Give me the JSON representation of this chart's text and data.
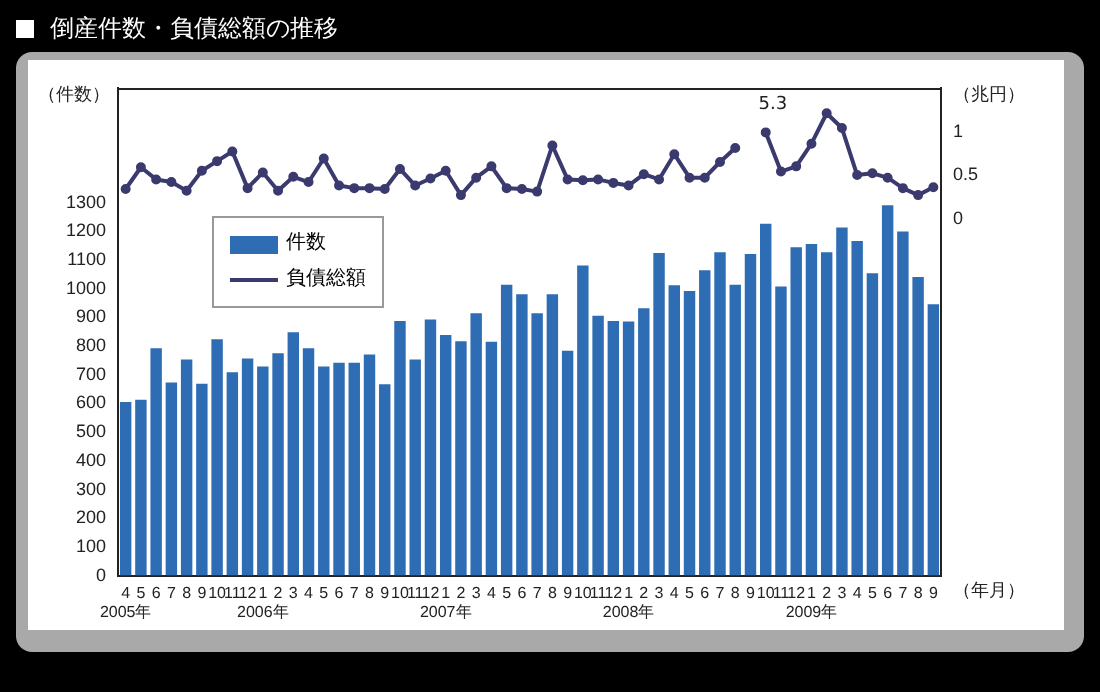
{
  "chart_data": {
    "type": "bar",
    "title": "倒産件数・負債総額の推移",
    "ylabel": "（件数）",
    "y2label": "（兆円）",
    "xlabel": "（年月）",
    "categories": [
      "4\n2005年",
      "5",
      "6",
      "7",
      "8",
      "9",
      "10",
      "11",
      "12",
      "1\n2006年",
      "2",
      "3",
      "4",
      "5",
      "6",
      "7",
      "8",
      "9",
      "10",
      "11",
      "12",
      "1\n2007年",
      "2",
      "3",
      "4",
      "5",
      "6",
      "7",
      "8",
      "9",
      "10",
      "11",
      "12",
      "1\n2008年",
      "2",
      "3",
      "4",
      "5",
      "6",
      "7",
      "8",
      "9",
      "10",
      "11",
      "12",
      "1\n2009年",
      "2",
      "3",
      "4",
      "5",
      "6",
      "7",
      "8",
      "9"
    ],
    "series": [
      {
        "name": "件数",
        "color": "#2e6db4",
        "values": [
          605,
          613,
          793,
          673,
          753,
          669,
          824,
          709,
          757,
          729,
          775,
          848,
          793,
          729,
          742,
          742,
          771,
          667,
          888,
          753,
          893,
          839,
          817,
          915,
          815,
          1014,
          981,
          915,
          981,
          784,
          1081,
          906,
          888,
          886,
          932,
          1125,
          1012,
          992,
          1065,
          1127,
          1014,
          1121,
          1227,
          1008,
          1145,
          1156,
          1127,
          1214,
          1167,
          1054,
          1291,
          1200,
          1041,
          946
        ]
      },
      {
        "name": "負債総額",
        "type": "line",
        "axis": "y2",
        "color": "#3b3a6e",
        "values": [
          0.34,
          0.59,
          0.45,
          0.42,
          0.32,
          0.55,
          0.66,
          0.77,
          0.35,
          0.53,
          0.32,
          0.48,
          0.42,
          0.69,
          0.38,
          0.35,
          0.35,
          0.34,
          0.57,
          0.38,
          0.46,
          0.55,
          0.27,
          0.47,
          0.6,
          0.35,
          0.34,
          0.31,
          0.84,
          0.45,
          0.44,
          0.45,
          0.41,
          0.38,
          0.51,
          0.45,
          0.74,
          0.47,
          0.47,
          0.65,
          0.81,
          null,
          0.99,
          0.54,
          0.6,
          0.86,
          1.21,
          1.04,
          0.5,
          0.52,
          0.47,
          0.35,
          0.27,
          0.36
        ]
      }
    ],
    "annotations": [
      "5.3"
    ],
    "ylim": [
      0,
      1700
    ],
    "yticks": [
      0,
      100,
      200,
      300,
      400,
      500,
      600,
      700,
      800,
      900,
      1000,
      1100,
      1200,
      1300
    ],
    "y2lim": [
      -4.1,
      1.5
    ],
    "y2ticks": [
      0,
      0.5,
      1
    ],
    "legend": "top left",
    "grid": false,
    "marker": "circle",
    "line_style": "solid"
  }
}
